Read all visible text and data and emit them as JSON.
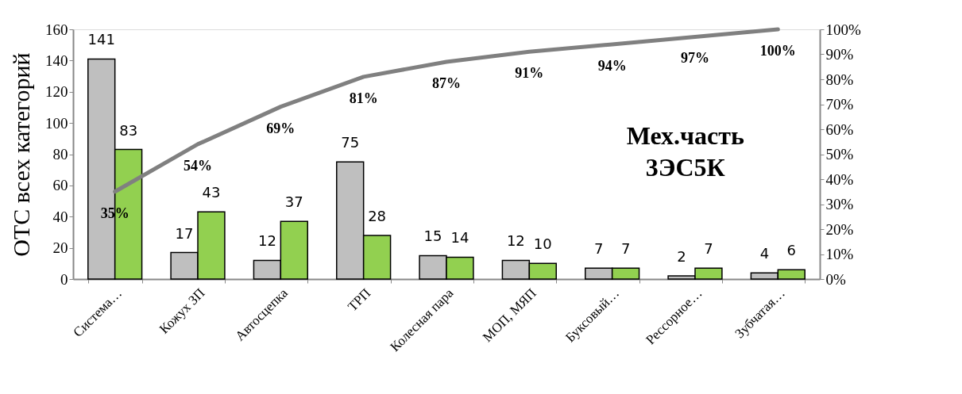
{
  "chart_data": {
    "type": "bar",
    "ylabel": "ОТС всех категорий",
    "categories": [
      "Система…",
      "Кожух ЗП",
      "Автосцепка",
      "ТРП",
      "Колесная пара",
      "МОП, МЯП",
      "Буксовый…",
      "Рессорное…",
      "Зубчатая…"
    ],
    "series": [
      {
        "color": "#bfbfbf",
        "values": [
          141,
          17,
          12,
          75,
          15,
          12,
          7,
          2,
          4
        ],
        "value_labels": [
          "141",
          "17",
          "12",
          "75",
          "15",
          "12",
          "7",
          "2",
          "4"
        ]
      },
      {
        "color": "#92d050",
        "values": [
          83,
          43,
          37,
          28,
          14,
          10,
          7,
          7,
          6
        ],
        "value_labels": [
          "83",
          "43",
          "37",
          "28",
          "14",
          "10",
          "7",
          "7",
          "6"
        ]
      },
      {
        "type": "line",
        "axis": "y2",
        "color": "#808080",
        "values": [
          35,
          54,
          69,
          81,
          87,
          91,
          94,
          97,
          100
        ],
        "value_labels": [
          "35%",
          "54%",
          "69%",
          "81%",
          "87%",
          "91%",
          "94%",
          "97%",
          "100%"
        ]
      }
    ],
    "ylim": [
      0,
      160
    ],
    "yticks": [
      0,
      20,
      40,
      60,
      80,
      100,
      120,
      140,
      160
    ],
    "y2lim": [
      0,
      100
    ],
    "y2ticks": [
      {
        "value": 0,
        "label": "0%"
      },
      {
        "value": 10,
        "label": "10%"
      },
      {
        "value": 20,
        "label": "20%"
      },
      {
        "value": 30,
        "label": "30%"
      },
      {
        "value": 40,
        "label": "40%"
      },
      {
        "value": 50,
        "label": "50%"
      },
      {
        "value": 60,
        "label": "60%"
      },
      {
        "value": 70,
        "label": "70%"
      },
      {
        "value": 80,
        "label": "80%"
      },
      {
        "value": 90,
        "label": "90%"
      },
      {
        "value": 100,
        "label": "100%"
      }
    ],
    "annotations": [
      "Мех.часть\n3ЭС5К"
    ],
    "grid": false,
    "legend": false
  }
}
